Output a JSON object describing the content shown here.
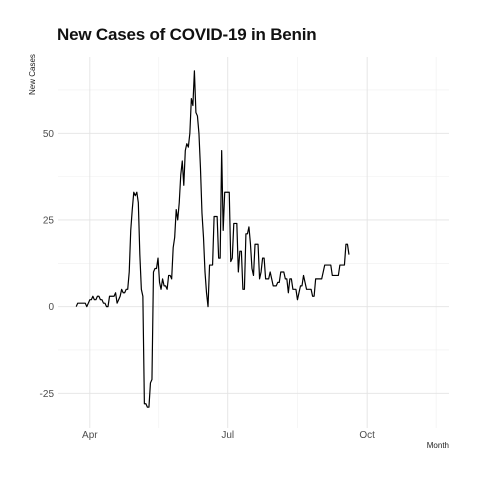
{
  "chart_data": {
    "type": "line",
    "title": "New Cases of COVID-19 in Benin",
    "xlabel": "Month",
    "ylabel": "New Cases",
    "x_start": "2020-03-23",
    "xlim": [
      "2020-03-11",
      "2020-11-24"
    ],
    "ylim": [
      -35,
      72
    ],
    "x_ticks": [
      {
        "date": "2020-04-01",
        "label": "Apr"
      },
      {
        "date": "2020-07-01",
        "label": "Jul"
      },
      {
        "date": "2020-10-01",
        "label": "Oct"
      }
    ],
    "y_ticks": [
      -25,
      0,
      25,
      50
    ],
    "grid": true,
    "legend": "none",
    "series": [
      {
        "values": [
          0,
          1,
          1,
          1,
          1,
          1,
          1,
          0,
          1,
          2,
          2,
          3,
          2,
          2,
          3,
          3,
          2,
          2,
          1,
          1,
          0,
          0,
          3,
          3,
          3,
          3,
          4,
          1,
          2,
          3,
          5,
          4,
          4,
          5,
          5,
          10,
          22,
          28,
          33,
          32,
          33,
          30,
          15,
          5,
          3,
          -28,
          -28,
          -29,
          -29,
          -22,
          -21,
          10,
          11,
          11,
          14,
          7,
          5,
          8,
          6,
          6,
          5,
          9,
          9,
          8,
          17,
          20,
          28,
          25,
          30,
          38,
          42,
          35,
          45,
          47,
          46,
          50,
          60,
          58,
          68,
          56,
          55,
          50,
          40,
          27,
          20,
          10,
          4,
          0,
          12,
          12,
          12,
          26,
          26,
          26,
          14,
          14,
          45,
          22,
          33,
          33,
          33,
          33,
          13,
          14,
          24,
          24,
          24,
          10,
          16,
          16,
          5,
          5,
          21,
          21,
          23,
          18,
          11,
          9,
          18,
          18,
          18,
          8,
          10,
          14,
          14,
          8,
          8,
          8,
          10,
          8,
          6,
          6,
          6,
          7,
          7,
          10,
          10,
          10,
          8,
          8,
          4,
          8,
          8,
          5,
          5,
          5,
          2,
          4,
          6,
          6,
          9,
          7,
          5,
          5,
          5,
          5,
          3,
          3,
          8,
          8,
          8,
          8,
          8,
          10,
          12,
          12,
          12,
          12,
          12,
          9,
          9,
          9,
          9,
          9,
          12,
          12,
          12,
          12,
          18,
          18,
          15
        ]
      }
    ]
  }
}
